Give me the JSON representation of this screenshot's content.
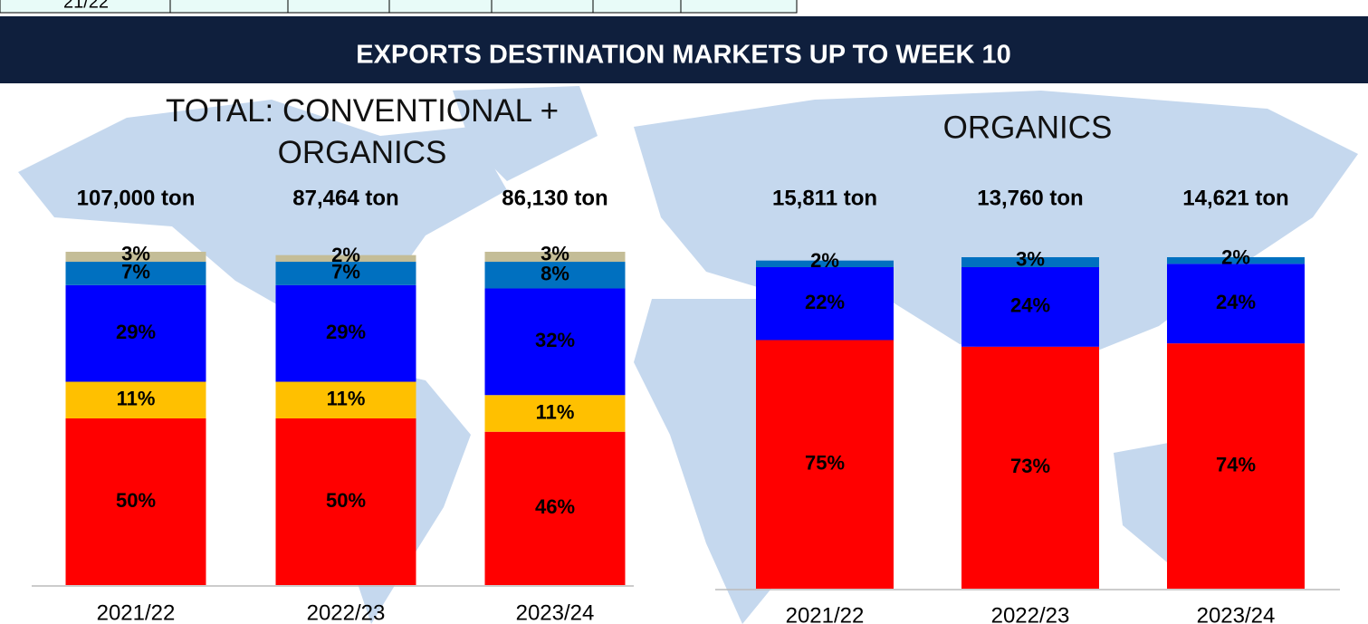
{
  "header_row": {
    "cells": [
      "21/22"
    ]
  },
  "banner": "EXPORTS DESTINATION MARKETS UP TO WEEK 10",
  "chart_data": [
    {
      "type": "stacked_bar",
      "title": "TOTAL: CONVENTIONAL + ORGANICS",
      "categories": [
        "2021/22",
        "2022/23",
        "2023/24"
      ],
      "annotations": [
        "107,000 ton",
        "87,464 ton",
        "86,130 ton"
      ],
      "ylim": [
        0,
        100
      ],
      "series": [
        {
          "color": "#ff0000",
          "values": [
            50,
            50,
            46
          ],
          "value_labels": [
            "50%",
            "50%",
            "46%"
          ]
        },
        {
          "color": "#ffc000",
          "values": [
            11,
            11,
            11
          ],
          "value_labels": [
            "11%",
            "11%",
            "11%"
          ]
        },
        {
          "color": "#0000ff",
          "values": [
            29,
            29,
            32
          ],
          "value_labels": [
            "29%",
            "29%",
            "32%"
          ]
        },
        {
          "color": "#0070c0",
          "values": [
            7,
            7,
            8
          ],
          "value_labels": [
            "7%",
            "7%",
            "8%"
          ]
        },
        {
          "color": "#c4bd97",
          "values": [
            3,
            2,
            3
          ],
          "value_labels": [
            "3%",
            "2%",
            "3%"
          ]
        }
      ]
    },
    {
      "type": "stacked_bar",
      "title": "ORGANICS",
      "categories": [
        "2021/22",
        "2022/23",
        "2023/24"
      ],
      "annotations": [
        "15,811 ton",
        "13,760 ton",
        "14,621 ton"
      ],
      "ylim": [
        0,
        100
      ],
      "series": [
        {
          "color": "#ff0000",
          "values": [
            75,
            73,
            74
          ],
          "value_labels": [
            "75%",
            "73%",
            "74%"
          ]
        },
        {
          "color": "#0000ff",
          "values": [
            22,
            24,
            24
          ],
          "value_labels": [
            "22%",
            "24%",
            "24%"
          ]
        },
        {
          "color": "#0070c0",
          "values": [
            2,
            3,
            2
          ],
          "value_labels": [
            "2%",
            "3%",
            "2%"
          ]
        }
      ]
    }
  ]
}
